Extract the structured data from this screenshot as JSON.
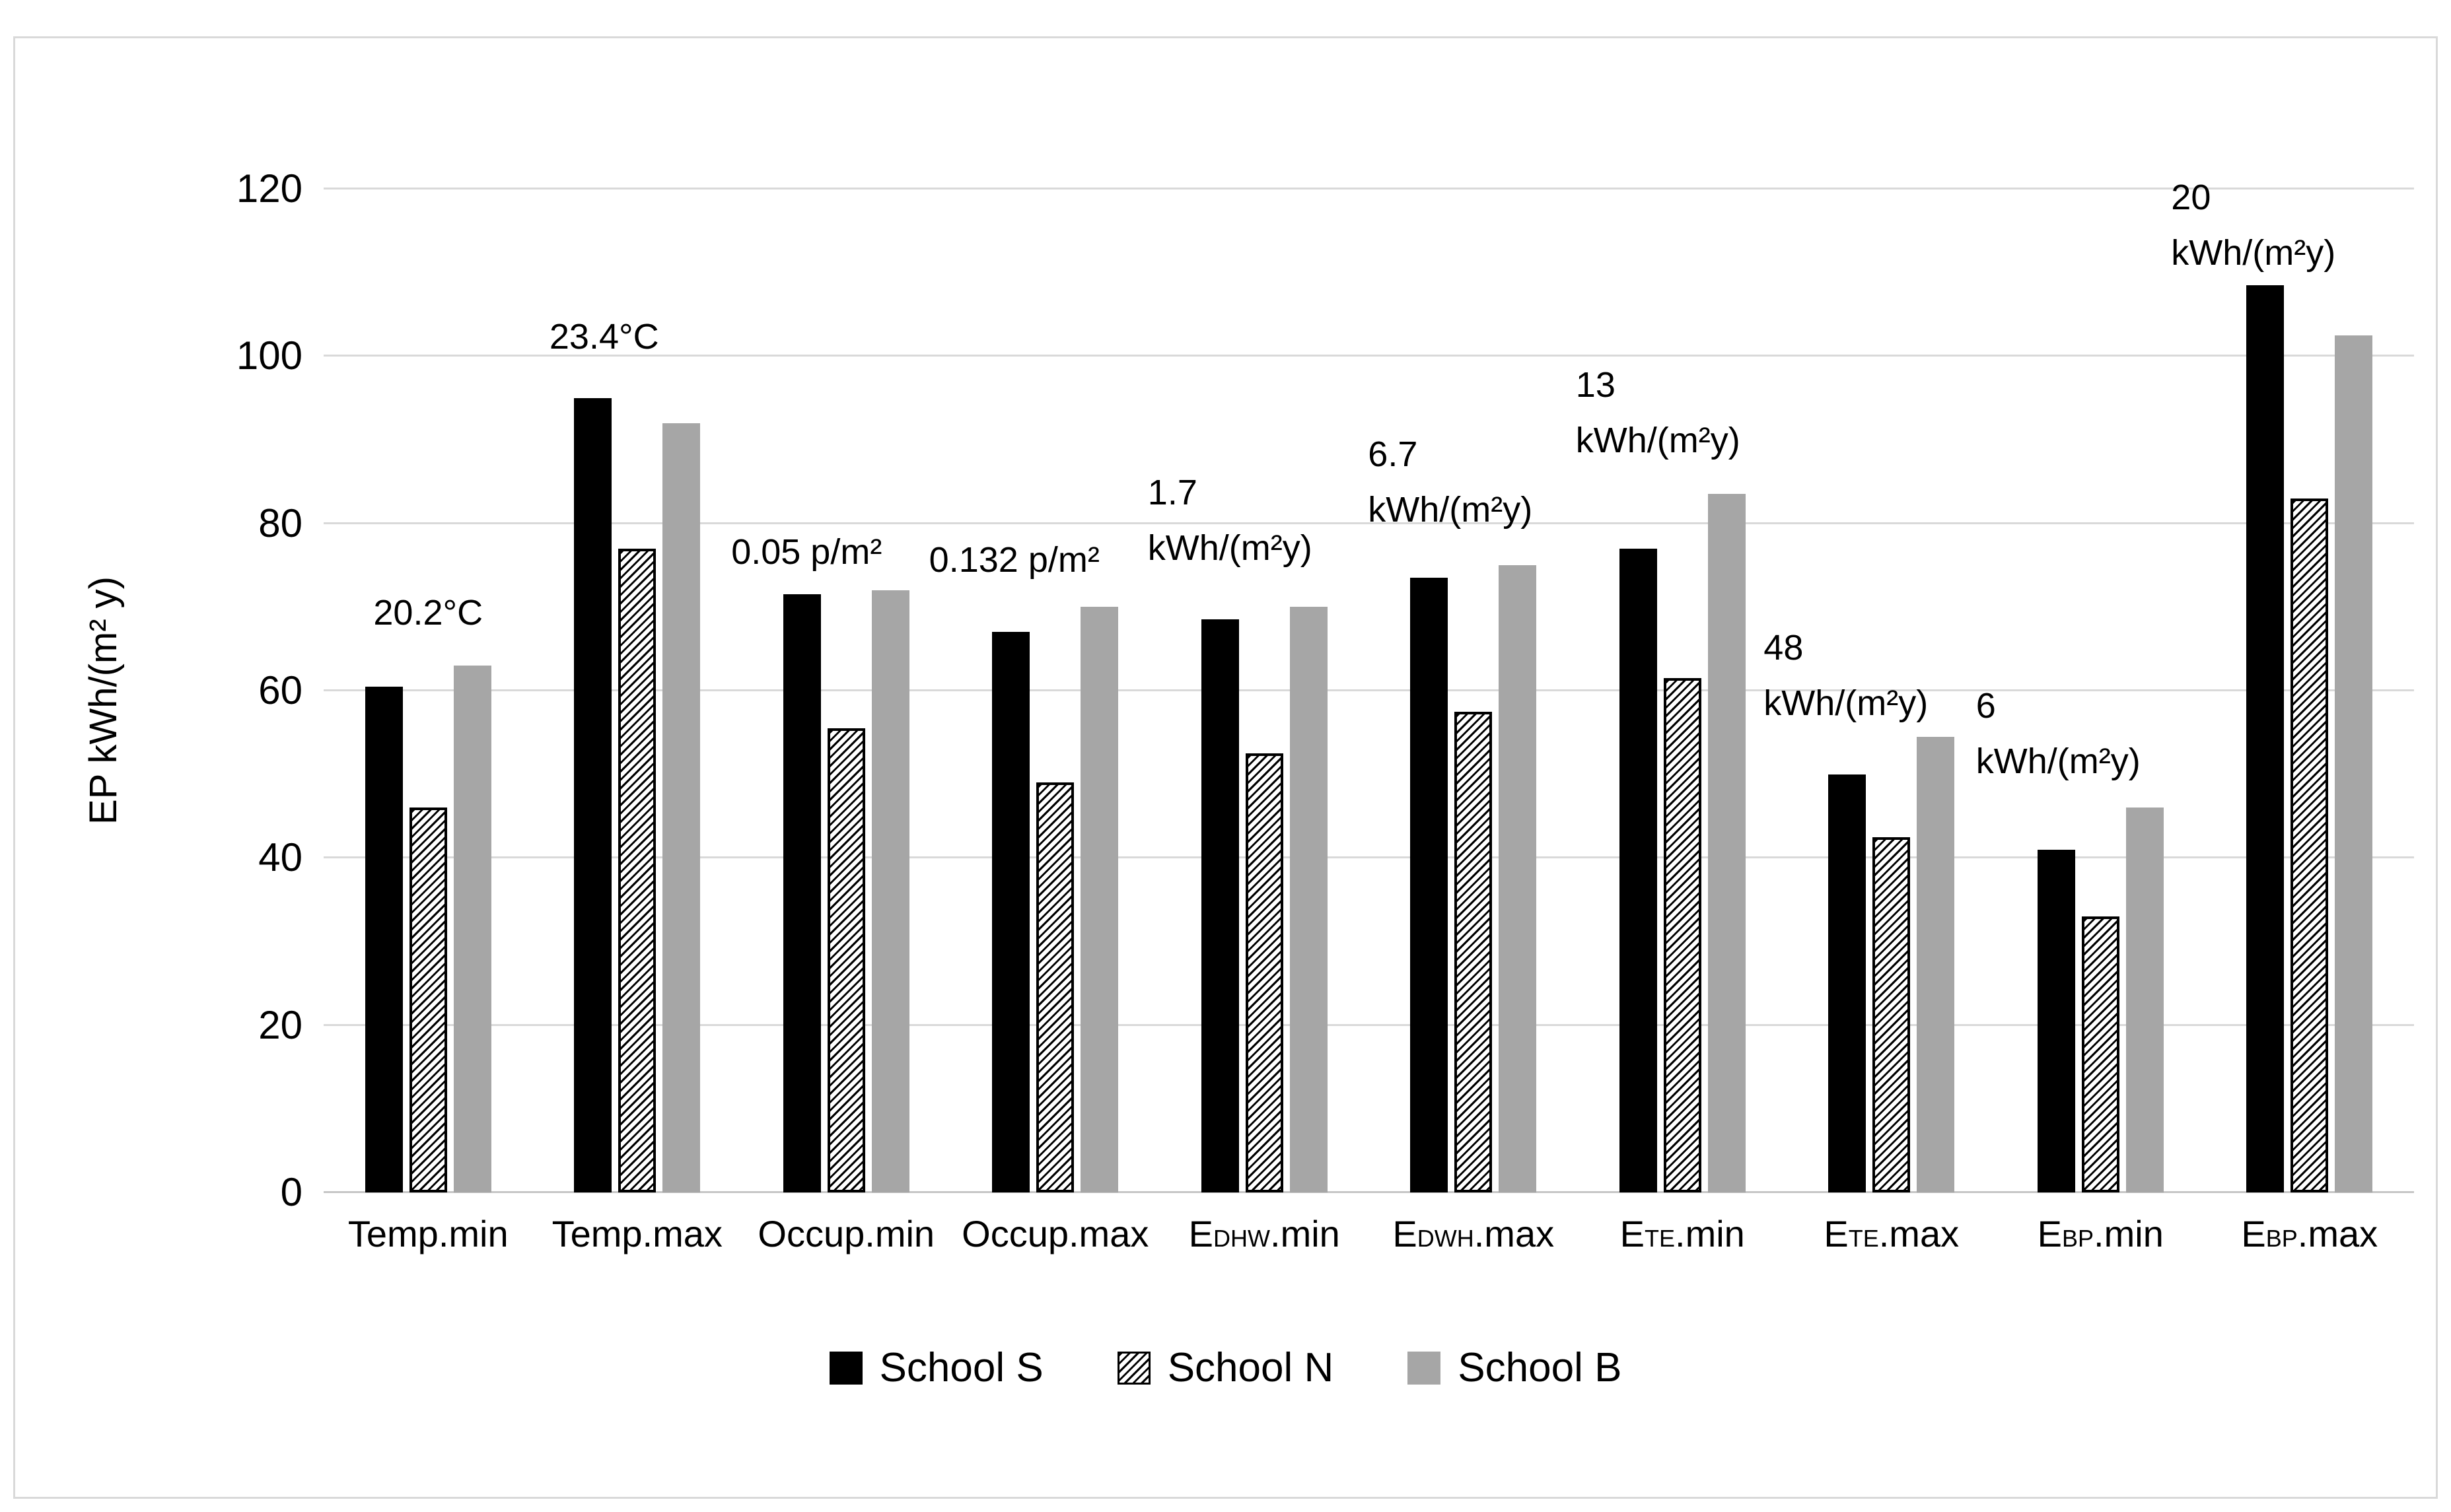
{
  "chart_data": {
    "type": "bar",
    "title": "",
    "xlabel": "",
    "ylabel": "EP kWh/(m² y)",
    "ylim": [
      0,
      120
    ],
    "yticks": [
      0,
      20,
      40,
      60,
      80,
      100,
      120
    ],
    "grid": "horizontal",
    "legend_position": "bottom-center",
    "background_color": "#ffffff",
    "gridline_color": "#d9d9d9",
    "categories": [
      "Temp.min",
      "Temp.max",
      "Occup.min",
      "Occup.max",
      "EDHW.min",
      "EDWH.max",
      "ETE.min",
      "ETE.max",
      "EBP.min",
      "EBP.max"
    ],
    "categories_display": [
      {
        "parts": [
          {
            "t": "Temp.min"
          }
        ]
      },
      {
        "parts": [
          {
            "t": "Temp.max"
          }
        ]
      },
      {
        "parts": [
          {
            "t": "Occup.min"
          }
        ]
      },
      {
        "parts": [
          {
            "t": "Occup.max"
          }
        ]
      },
      {
        "parts": [
          {
            "t": "E"
          },
          {
            "t": "DHW",
            "sub": true
          },
          {
            "t": ".min"
          }
        ]
      },
      {
        "parts": [
          {
            "t": "E"
          },
          {
            "t": "DWH",
            "sub": true
          },
          {
            "t": ".max"
          }
        ]
      },
      {
        "parts": [
          {
            "t": "E"
          },
          {
            "t": "TE",
            "sub": true
          },
          {
            "t": ".min"
          }
        ]
      },
      {
        "parts": [
          {
            "t": "E"
          },
          {
            "t": "TE",
            "sub": true
          },
          {
            "t": ".max"
          }
        ]
      },
      {
        "parts": [
          {
            "t": "E"
          },
          {
            "t": "BP",
            "sub": true
          },
          {
            "t": ".min"
          }
        ]
      },
      {
        "parts": [
          {
            "t": "E"
          },
          {
            "t": "BP",
            "sub": true
          },
          {
            "t": ".max"
          }
        ]
      }
    ],
    "series": [
      {
        "name": "School S",
        "pattern": "solid",
        "color": "#000000",
        "values": [
          60.5,
          95,
          71.5,
          67,
          68.5,
          73.5,
          77,
          50,
          41,
          108.5
        ]
      },
      {
        "name": "School N",
        "pattern": "diagonal-hatch",
        "color": "#ffffff",
        "hatch_color": "#000000",
        "values": [
          46,
          77,
          55.5,
          49,
          52.5,
          57.5,
          61.5,
          42.5,
          33,
          83
        ]
      },
      {
        "name": "School B",
        "pattern": "solid",
        "color": "#a6a6a6",
        "values": [
          63,
          92,
          72,
          70,
          70,
          75,
          83.5,
          54.5,
          46,
          102.5
        ]
      }
    ],
    "annotations": [
      {
        "category": "Temp.min",
        "lines": [
          "20.2°C"
        ]
      },
      {
        "category": "Temp.max",
        "lines": [
          "23.4°C"
        ]
      },
      {
        "category": "Occup.min",
        "lines": [
          "0.05 p/m²"
        ]
      },
      {
        "category": "Occup.max",
        "lines": [
          "0.132 p/m²"
        ]
      },
      {
        "category": "EDHW.min",
        "lines": [
          "1.7",
          "kWh/(m²y)"
        ]
      },
      {
        "category": "EDWH.max",
        "lines": [
          "6.7",
          "kWh/(m²y)"
        ]
      },
      {
        "category": "ETE.min",
        "lines": [
          "13",
          "kWh/(m²y)"
        ]
      },
      {
        "category": "ETE.max",
        "lines": [
          "48",
          "kWh/(m²y)"
        ]
      },
      {
        "category": "EBP.min",
        "lines": [
          "6",
          "kWh/(m²y)"
        ]
      },
      {
        "category": "EBP.max",
        "lines": [
          "20",
          "kWh/(m²y)"
        ]
      }
    ]
  }
}
